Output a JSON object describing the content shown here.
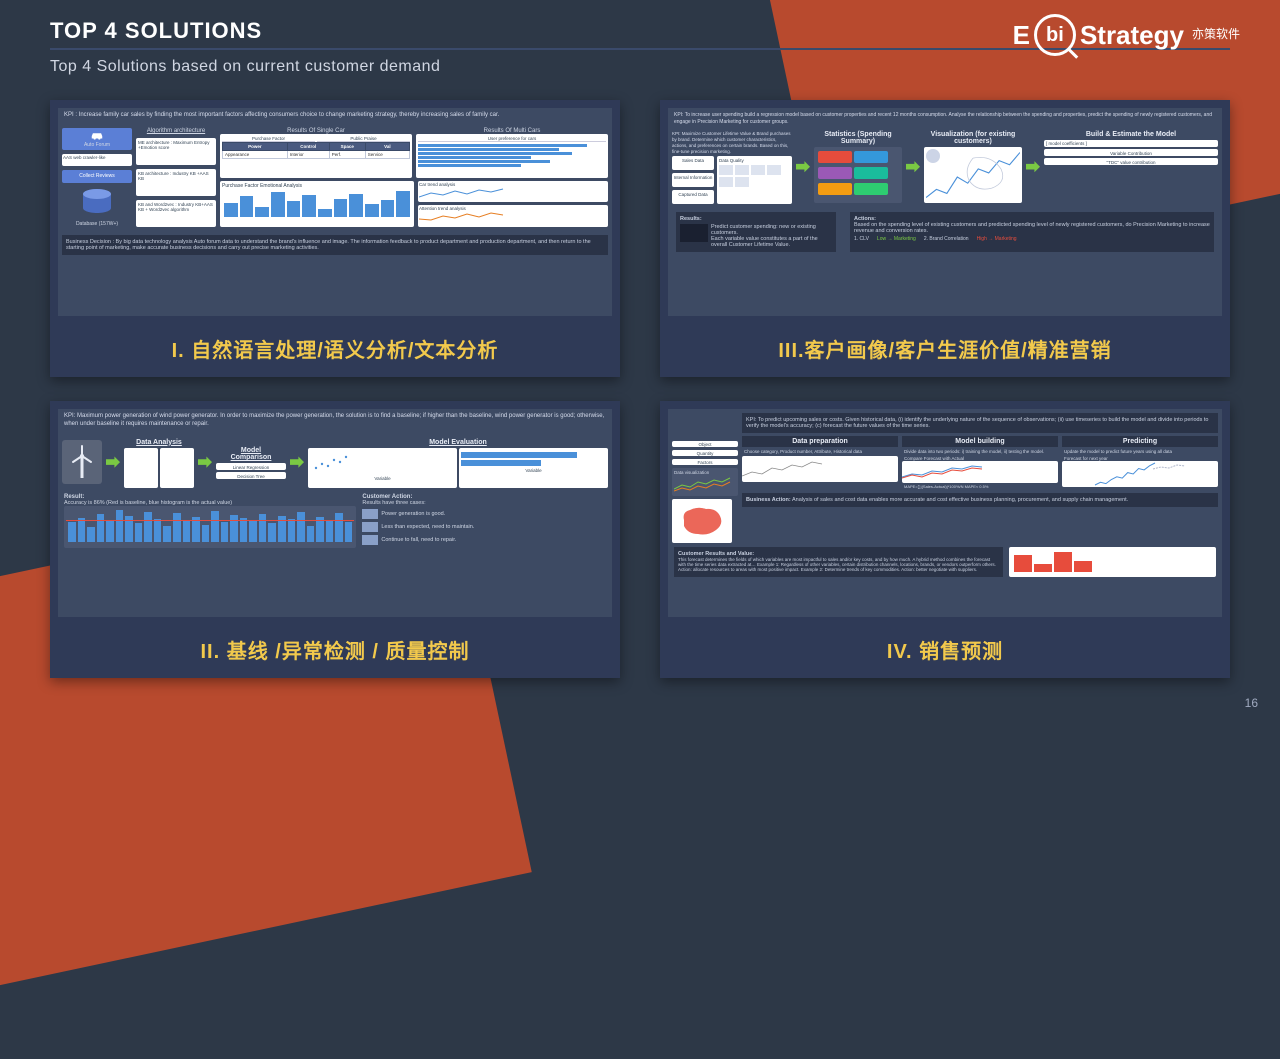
{
  "header": {
    "title": "TOP 4 SOLUTIONS",
    "subtitle": "Top 4 Solutions based on current customer demand"
  },
  "logo": {
    "prefix": "E",
    "circle": "bi",
    "suffix": "Strategy",
    "cn": "亦策软件"
  },
  "page_number": "16",
  "colors": {
    "background": "#2d3847",
    "accent_orange": "#b84a2e",
    "card_bg": "#2f3a57",
    "caption_yellow": "#f2c94c",
    "arrow_green": "#7ac943"
  },
  "cards": [
    {
      "id": "c1",
      "caption": "I. 自然语言处理/语义分析/文本分析",
      "thumb": {
        "kpi": "KPI : Increase family car sales by finding the most important factors affecting consumers choice to change marketing strategy, thereby increasing sales of family car.",
        "blocks": {
          "forum": "Auto Forum",
          "forum_sub": "AAS web crawler-like",
          "algo_title": "Algorithm architecture",
          "algo1": "ME architecture : Maximum Entropy +Emotion score",
          "algo2": "KB architecture : Industry KB +AAS KB",
          "algo3": "KB and Word2vec : Industry KB+AAS KB + Word2vec algorithm",
          "collect": "Collect Reviews",
          "db": "Database (157W+)",
          "r_single": "Results Of Single Car",
          "r_multi": "Results Of Multi Cars",
          "pf": "Purchase Factor",
          "pp": "Public Praise",
          "upc": "User preference for cars",
          "pfea": "Purchase Factor Emotional Analysis",
          "cta": "Car trend analysis",
          "ata": "Attention trend analysis"
        },
        "decision": "Business Decision : By big data technology analysis Auto forum data to understand the brand's influence and image. The information feedback to product department and production department, and then return to the starting point of marketing, make accurate business decisions and carry out precise marketing activities.",
        "bar_values": [
          12,
          18,
          9,
          22,
          14,
          19,
          7,
          16,
          20,
          11,
          15,
          23
        ]
      }
    },
    {
      "id": "c3",
      "caption": "III.客户画像/客户生涯价值/精准营销",
      "thumb": {
        "kpi": "KPI: To increase user spending build a regression model based on customer properties and recent 12 months consumption. Analyse the relationship between the spending and properties, predict the spending of newly registered customers, and engage in Precision Marketing for customer groups.",
        "kpi2": "KPI: Maximize Customer Lifetime Value & Brand purchases by brand. Determine which customer characteristics, actions, and preferences on certain brands. Based on this, fine-tune precision marketing.",
        "cols": {
          "stats": "Statistics (Spending Summary)",
          "viz": "Visualization (for existing customers)",
          "model": "Build & Estimate the Model",
          "vc": "Variable Contribution",
          "tdc": "\"TDC\" value contribution"
        },
        "inputs": {
          "sales": "Sales Data",
          "internal": "Internal Information",
          "captured": "Captured Data",
          "data_quality": "Data Quality"
        },
        "results_title": "Results:",
        "actions_title": "Actions:",
        "actions_body": "Based on the spending level of existing customers and predicted spending level of newly registered customers, do Precision Marketing to increase revenue and conversion rates.",
        "action_items": {
          "a": "Predict customer spending: new or existing customers.",
          "b": "Each variable value constitutes a part of the overall Customer Lifetime Value.",
          "c1": "1. CLV",
          "c2": "2. Brand Correlation",
          "c3": "Low → Marketing",
          "c4": "High → Marketing"
        },
        "tag_colors": [
          "#e74c3c",
          "#3498db",
          "#9b59b6",
          "#1abc9c",
          "#f39c12",
          "#2ecc71"
        ],
        "line_values": [
          8,
          12,
          10,
          18,
          15,
          22,
          20,
          26,
          24,
          30
        ]
      }
    },
    {
      "id": "c2",
      "caption": "II. 基线 /异常检测 / 质量控制",
      "thumb": {
        "kpi": "KPI: Maximum power generation of wind power generator. In order to maximize the power generation, the solution is to find a baseline; if higher than the baseline, wind power generator is good; otherwise, when under baseline it requires maintenance or repair.",
        "steps": {
          "s1": "Data Analysis",
          "s2": "Model Comparison",
          "s2a": "Linear Regression",
          "s2b": "Decision Tree",
          "s3": "Model Evaluation",
          "s3a": "Variable",
          "s3b": "Variable"
        },
        "result_title": "Result:",
        "result_body": "Accuracy is 86% (Red is baseline, blue histogram is the actual value)",
        "action_title": "Customer Action:",
        "action_intro": "Results have three cases:",
        "action1": "Power generation is good.",
        "action2": "Less than expected, need to maintain.",
        "action3": "Continue to fall, need to repair.",
        "bar_values": [
          18,
          22,
          14,
          26,
          19,
          30,
          24,
          17,
          28,
          21,
          15,
          27,
          20,
          23,
          16,
          29,
          18,
          25,
          22,
          19,
          26,
          17,
          24,
          21,
          28,
          15,
          23,
          20,
          27,
          18
        ]
      }
    },
    {
      "id": "c4",
      "caption": "IV. 销售预测",
      "thumb": {
        "kpi": "KPI: To predict upcoming sales or costs. Given historical data, (i) identify the underlying nature of the sequence of observations; (ii) use timeseries to build the model and divide into periods to verify the model's accuracy; (c) forecast the future values of the time series.",
        "cols": {
          "dp": "Data preparation",
          "mb": "Model building",
          "pr": "Predicting"
        },
        "dp_items": "Choose category, Product number, Attribute, Historical data",
        "mb_items": "Divide data into two periods: i) training the model, ii) testing the model.",
        "mb_sub": "Compare Forecast with Actual",
        "mb_metric": "MAPE=∑|(Sales-Actual)|*100%/N  MAPE≈ 0.5%",
        "pr_items": "Update the model to predict future years using all data",
        "pr_sub": "Forecast for next year",
        "side": {
          "obj": "Object",
          "qty": "Quantity",
          "fac": "Factors",
          "dv": "Data visualization"
        },
        "biz_title": "Business Action:",
        "biz_body": "Analysis of sales and cost data enables more accurate and cost effective business planning, procurement, and supply chain management.",
        "crv_title": "Customer Results and Value:",
        "crv_body": "This forecast determines the fields of which variables are most impactful to sales and/or key costs, and by how much. A hybrid method combines the forecast with the time series data extracted at… Example 1: Regardless of other variables, certain distribution channels, locations, brands, or vendors outperform others. Action: allocate resources to areas with most positive impact. Example 2: Determine trends of key commodities. Action: better negotiate with suppliers.",
        "forecast_values": [
          14,
          16,
          15,
          18,
          20,
          19,
          23,
          22,
          26,
          25,
          28,
          30
        ],
        "bars_small": [
          22,
          10,
          26,
          14
        ]
      }
    }
  ]
}
